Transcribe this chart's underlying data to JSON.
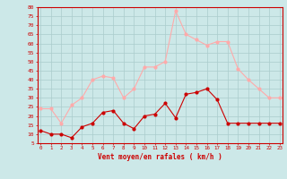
{
  "hours": [
    0,
    1,
    2,
    3,
    4,
    5,
    6,
    7,
    8,
    9,
    10,
    11,
    12,
    13,
    14,
    15,
    16,
    17,
    18,
    19,
    20,
    21,
    22,
    23
  ],
  "wind_avg": [
    12,
    10,
    10,
    8,
    14,
    16,
    22,
    23,
    16,
    13,
    20,
    21,
    27,
    19,
    32,
    33,
    35,
    29,
    16,
    16,
    16,
    16,
    16,
    16
  ],
  "wind_gust": [
    24,
    24,
    16,
    26,
    30,
    40,
    42,
    41,
    30,
    35,
    47,
    47,
    50,
    78,
    65,
    62,
    59,
    61,
    61,
    46,
    40,
    35,
    30,
    30
  ],
  "avg_color": "#cc0000",
  "gust_color": "#ffaaaa",
  "bg_color": "#cce8e8",
  "grid_color": "#aacccc",
  "xlabel": "Vent moyen/en rafales ( km/h )",
  "xlabel_color": "#cc0000",
  "ylabel_ticks": [
    5,
    10,
    15,
    20,
    25,
    30,
    35,
    40,
    45,
    50,
    55,
    60,
    65,
    70,
    75,
    80
  ],
  "ylim": [
    5,
    80
  ],
  "xlim_min": -0.3,
  "xlim_max": 23.3,
  "marker_size": 2.0,
  "linewidth": 0.8
}
